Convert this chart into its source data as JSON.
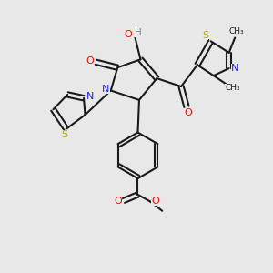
{
  "bg_color": "#e8e8e8",
  "bond_color": "#1a1a1a",
  "colors": {
    "O": "#dd1100",
    "N": "#2222ee",
    "S": "#bbaa00",
    "H": "#888888",
    "C": "#1a1a1a"
  }
}
